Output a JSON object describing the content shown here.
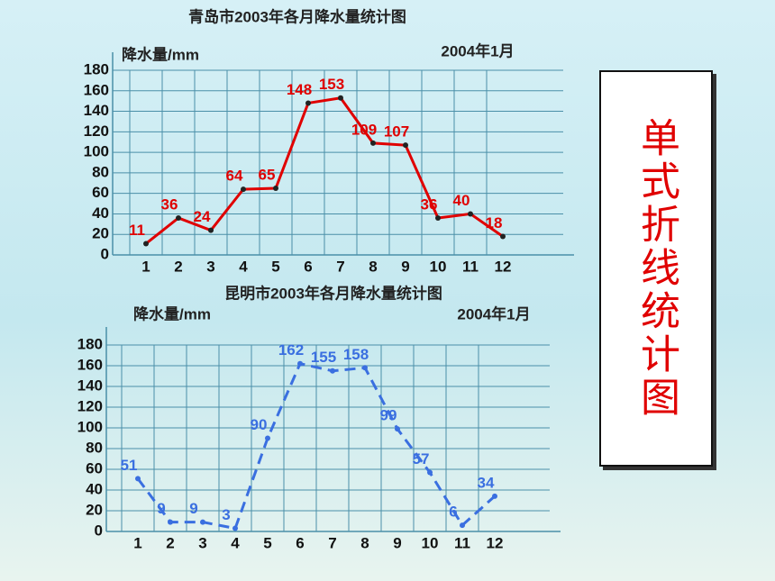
{
  "chart_data": [
    {
      "type": "line",
      "title": "青岛市2003年各月降水量统计图",
      "y_label": "降水量/mm",
      "annotation": "2004年1月",
      "categories": [
        "1",
        "2",
        "3",
        "4",
        "5",
        "6",
        "7",
        "8",
        "9",
        "10",
        "11",
        "12"
      ],
      "series": [
        {
          "color": "#e00000",
          "dash": false,
          "values": [
            11,
            36,
            24,
            64,
            65,
            148,
            153,
            109,
            107,
            36,
            40,
            18
          ]
        }
      ],
      "ylim": [
        0,
        180
      ],
      "yticks": [
        0,
        20,
        40,
        60,
        80,
        100,
        120,
        140,
        160,
        180
      ],
      "grid": true
    },
    {
      "type": "line",
      "title": "昆明市2003年各月降水量统计图",
      "y_label": "降水量/mm",
      "annotation": "2004年1月",
      "categories": [
        "1",
        "2",
        "3",
        "4",
        "5",
        "6",
        "7",
        "8",
        "9",
        "10",
        "11",
        "12"
      ],
      "series": [
        {
          "color": "#3a6fe0",
          "dash": true,
          "values": [
            51,
            9,
            9,
            3,
            90,
            162,
            155,
            158,
            99,
            57,
            6,
            34
          ]
        }
      ],
      "ylim": [
        0,
        180
      ],
      "yticks": [
        0,
        20,
        40,
        60,
        80,
        100,
        120,
        140,
        160,
        180
      ],
      "grid": true
    }
  ],
  "side_label": "单式折线统计图"
}
